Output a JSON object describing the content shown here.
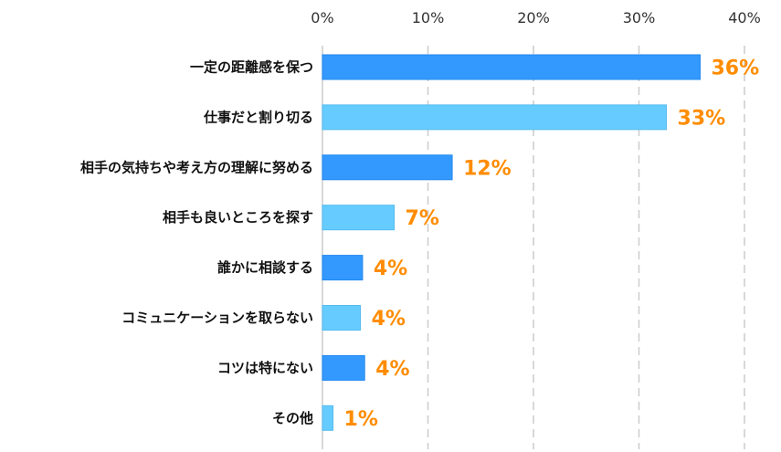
{
  "chart_data": {
    "type": "bar",
    "orientation": "horizontal",
    "categories": [
      "一定の距離感を保つ",
      "仕事だと割り切る",
      "相手の気持ちや考え方の理解に努める",
      "相手も良いところを探す",
      "誰かに相談する",
      "コミュニケーションを取らない",
      "コツは特にない",
      "その他"
    ],
    "values": [
      35.8,
      32.6,
      12.3,
      6.8,
      3.8,
      3.6,
      4.0,
      1.0
    ],
    "data_labels": [
      "36%",
      "33%",
      "12%",
      "7%",
      "4%",
      "4%",
      "4%",
      "1%"
    ],
    "xlim": [
      0,
      40
    ],
    "x_ticks": [
      "0%",
      "10%",
      "20%",
      "30%",
      "40%"
    ],
    "x_axis_position": "top",
    "grid": "vertical dashed",
    "bar_colors": [
      "#3399ff",
      "#66ccff"
    ],
    "label_color": "#ff8c00"
  }
}
